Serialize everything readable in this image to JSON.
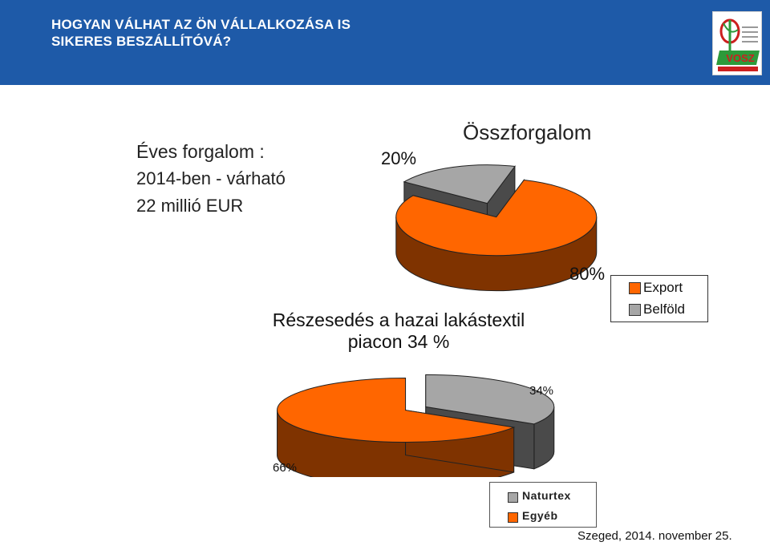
{
  "header": {
    "title": "HOGYAN VÁLHAT AZ ÖN VÁLLALKOZÁSA IS\nSIKERES BESZÁLLÍTÓVÁ?",
    "background_color": "#1e5aa8",
    "logo": {
      "icon": "vosz-logo-icon",
      "text": "VOSZ"
    }
  },
  "annual_revenue": {
    "title": "Éves forgalom :",
    "line1": "2014-ben - várható",
    "line2": "22 millió EUR"
  },
  "colors": {
    "export_top": "#ff6600",
    "export_side": "#7f3300",
    "domestic_top": "#a6a6a6",
    "domestic_side": "#4a4a4a"
  },
  "chart_data": [
    {
      "type": "pie",
      "style": "3d-exploded",
      "title": "Összforgalom",
      "slices": [
        {
          "label": "Export",
          "value": 80,
          "display": "80%"
        },
        {
          "label": "Belföld",
          "value": 20,
          "display": "20%"
        }
      ],
      "legend": {
        "placement": "right",
        "entries": [
          "Export",
          "Belföld"
        ]
      }
    },
    {
      "type": "pie",
      "style": "3d-exploded",
      "title": "Részesedés a hazai lakástextil\npiacon 34 %",
      "slices": [
        {
          "label": "Naturtex",
          "value": 34,
          "display": "34%"
        },
        {
          "label": "Egyéb",
          "value": 66,
          "display": "66%"
        }
      ],
      "legend": {
        "placement": "bottom-right",
        "entries": [
          "Naturtex",
          "Egyéb"
        ]
      }
    }
  ],
  "footer": {
    "text": "Szeged, 2014. november 25."
  }
}
